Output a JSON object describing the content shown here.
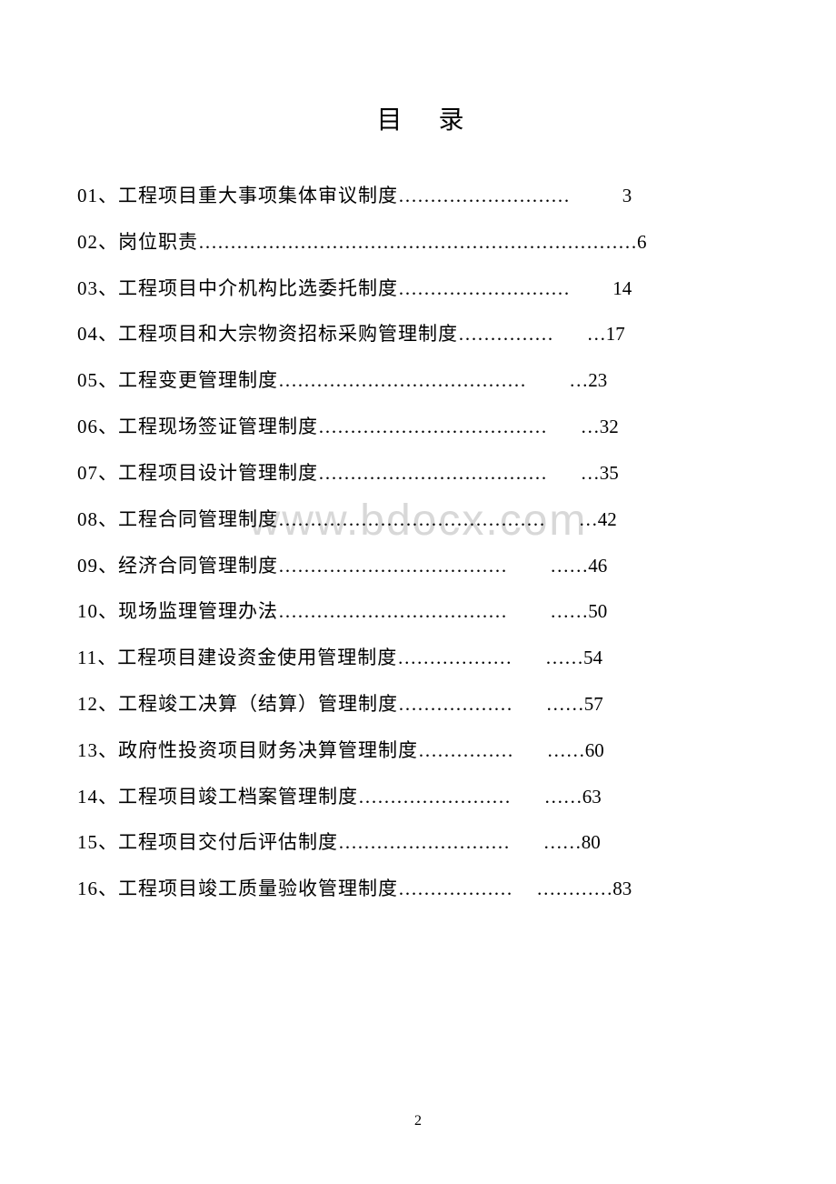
{
  "title": "目录",
  "watermark": "www.bdocx.com",
  "page_number": "2",
  "toc": {
    "items": [
      {
        "num": "01",
        "text": "工程项目重大事项集体审议制度",
        "dots": "………………………",
        "gap": "           ",
        "page_dots": "",
        "page": "3"
      },
      {
        "num": "02",
        "text": "岗位职责",
        "dots": "……………………………………………………………",
        "gap": "",
        "page_dots": "",
        "page": "6"
      },
      {
        "num": "03",
        "text": "工程项目中介机构比选委托制度",
        "dots": "………………………",
        "gap": "         ",
        "page_dots": "",
        "page": "14"
      },
      {
        "num": "04",
        "text": "工程项目和大宗物资招标采购管理制度",
        "dots": "……………",
        "gap": "       ",
        "page_dots": "…",
        "page": "17"
      },
      {
        "num": "05",
        "text": "工程变更管理制度",
        "dots": "…………………………………",
        "gap": "         ",
        "page_dots": "…",
        "page": "23"
      },
      {
        "num": "06",
        "text": "工程现场签证管理制度",
        "dots": "………………………………",
        "gap": "       ",
        "page_dots": "…",
        "page": "32"
      },
      {
        "num": "07",
        "text": "工程项目设计管理制度",
        "dots": "………………………………",
        "gap": "       ",
        "page_dots": "…",
        "page": "35"
      },
      {
        "num": "08",
        "text": "工程合同管理制度",
        "dots": "……………………………………",
        "gap": "       ",
        "page_dots": "…",
        "page": "42"
      },
      {
        "num": "09",
        "text": "经济合同管理制度",
        "dots": "………………………………",
        "gap": "         ",
        "page_dots": "……",
        "page": "46"
      },
      {
        "num": "10",
        "text": "现场监理管理办法",
        "dots": "………………………………",
        "gap": "         ",
        "page_dots": "……",
        "page": "50"
      },
      {
        "num": "11",
        "text": "工程项目建设资金使用管理制度",
        "dots": "………………",
        "gap": "       ",
        "page_dots": "……",
        "page": "54"
      },
      {
        "num": "12",
        "text": "工程竣工决算（结算）管理制度",
        "dots": "………………",
        "gap": "       ",
        "page_dots": "……",
        "page": "57"
      },
      {
        "num": "13",
        "text": "政府性投资项目财务决算管理制度",
        "dots": "……………",
        "gap": "       ",
        "page_dots": "……",
        "page": "60"
      },
      {
        "num": "14",
        "text": "工程项目竣工档案管理制度",
        "dots": "……………………",
        "gap": "       ",
        "page_dots": "……",
        "page": "63"
      },
      {
        "num": "15",
        "text": "工程项目交付后评估制度",
        "dots": "………………………",
        "gap": "       ",
        "page_dots": "……",
        "page": "80"
      },
      {
        "num": "16",
        "text": "工程项目竣工质量验收管理制度",
        "dots": "………………",
        "gap": "     ",
        "page_dots": "…………",
        "page": "83"
      }
    ]
  },
  "style": {
    "background_color": "#ffffff",
    "text_color": "#000000",
    "watermark_color": "#d8d8d8",
    "title_fontsize": 28,
    "body_fontsize": 21,
    "line_height": 2.42
  }
}
